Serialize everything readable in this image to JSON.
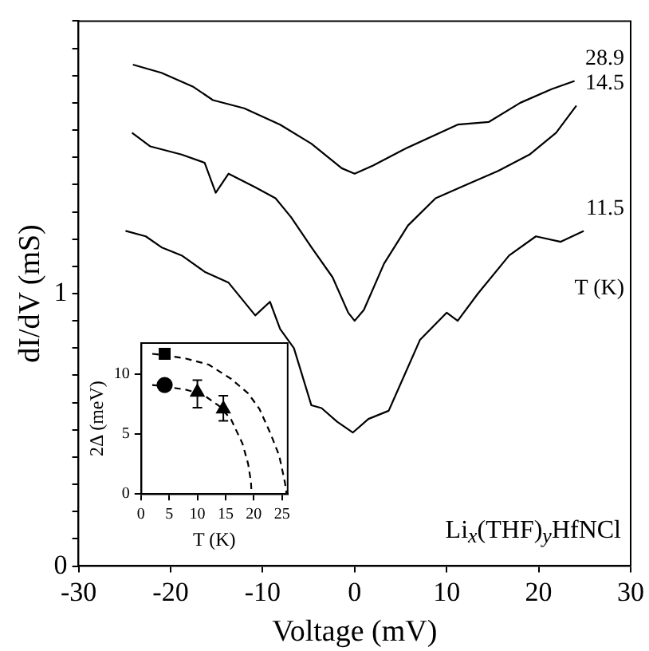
{
  "chart_data": [
    {
      "type": "line",
      "xlabel": "Voltage (mV)",
      "ylabel": "dI/dV (mS)",
      "legend_title": "T (K)",
      "annotations": [
        "Li$_{x}$(THF)$_{y}$HfNCl"
      ],
      "xlim": [
        -30,
        30
      ],
      "xticks": [
        -30,
        -20,
        -10,
        0,
        10,
        20,
        30
      ],
      "ylim": [
        0,
        2
      ],
      "yticks": [
        0,
        {
          "value": 0.1,
          "label": null
        },
        {
          "value": 0.2,
          "label": null
        },
        {
          "value": 0.3,
          "label": null
        },
        {
          "value": 0.4,
          "label": null
        },
        {
          "value": 0.5,
          "label": null
        },
        {
          "value": 0.6,
          "label": null
        },
        {
          "value": 0.7,
          "label": null
        },
        {
          "value": 0.8,
          "label": null
        },
        {
          "value": 0.9,
          "label": null
        },
        1,
        {
          "value": 1.1,
          "label": null
        },
        {
          "value": 1.2,
          "label": null
        },
        {
          "value": 1.3,
          "label": null
        },
        {
          "value": 1.4,
          "label": null
        },
        {
          "value": 1.5,
          "label": null
        },
        {
          "value": 1.6,
          "label": null
        },
        {
          "value": 1.7,
          "label": null
        },
        {
          "value": 1.8,
          "label": null
        },
        {
          "value": 1.9,
          "label": null
        },
        {
          "value": 2,
          "label": null
        }
      ],
      "grid": false,
      "legend": false,
      "series": [
        {
          "name": "28.9",
          "color": "#000000",
          "x": [
            -24.1,
            -21,
            -17.6,
            -15.4,
            -12,
            -8.1,
            -4.7,
            -1.4,
            0,
            2,
            5.4,
            11.2,
            14.6,
            18,
            21.4,
            23.9
          ],
          "values": [
            1.84,
            1.81,
            1.76,
            1.71,
            1.68,
            1.62,
            1.55,
            1.46,
            1.44,
            1.47,
            1.53,
            1.62,
            1.63,
            1.7,
            1.75,
            1.78
          ]
        },
        {
          "name": "14.5",
          "color": "#000000",
          "x": [
            -24.2,
            -22.2,
            -18.8,
            -16.3,
            -15.1,
            -13.7,
            -10.8,
            -8.6,
            -6.9,
            -4.7,
            -2.4,
            -0.7,
            0,
            1,
            3.2,
            5.8,
            8.8,
            12.2,
            15.6,
            19,
            21.9,
            24.1
          ],
          "values": [
            1.59,
            1.54,
            1.51,
            1.48,
            1.37,
            1.44,
            1.39,
            1.35,
            1.28,
            1.17,
            1.06,
            0.93,
            0.9,
            0.94,
            1.11,
            1.25,
            1.35,
            1.4,
            1.45,
            1.51,
            1.59,
            1.69
          ]
        },
        {
          "name": "11.5",
          "color": "#000000",
          "x": [
            -24.9,
            -22.7,
            -21,
            -18.8,
            -16.3,
            -13.7,
            -10.8,
            -9.2,
            -8.1,
            -6.6,
            -4.7,
            -3.6,
            -1.9,
            -0.2,
            1.5,
            3.7,
            5.4,
            7.1,
            10,
            11.2,
            13.4,
            16.8,
            19.7,
            22.4,
            24.9
          ],
          "values": [
            1.23,
            1.21,
            1.17,
            1.14,
            1.08,
            1.04,
            0.92,
            0.97,
            0.87,
            0.8,
            0.59,
            0.58,
            0.53,
            0.49,
            0.54,
            0.57,
            0.7,
            0.83,
            0.93,
            0.9,
            1.0,
            1.14,
            1.21,
            1.19,
            1.23
          ]
        }
      ]
    },
    {
      "type": "scatter",
      "xlabel": "T (K)",
      "ylabel": "2Δ (meV)",
      "xlim": [
        0,
        26
      ],
      "xticks": [
        0,
        5,
        10,
        15,
        20,
        25
      ],
      "ylim": [
        0,
        12.6
      ],
      "yticks": [
        0,
        5,
        10
      ],
      "grid": false,
      "legend": false,
      "series": [
        {
          "type": "scatter",
          "marker": "square",
          "color": "#000000",
          "x": [
            4.2
          ],
          "values": [
            11.7
          ]
        },
        {
          "type": "scatter",
          "marker": "circle",
          "color": "#000000",
          "x": [
            4.2
          ],
          "values": [
            9.1
          ]
        },
        {
          "type": "scatter",
          "marker": "triangle",
          "color": "#000000",
          "x": [
            10,
            14.6
          ],
          "values": [
            8.5,
            7.1
          ],
          "errors": [
            [
              7.2,
              9.5
            ],
            [
              6.1,
              8.2
            ]
          ]
        },
        {
          "type": "line",
          "line_style": "dashed",
          "marker": "none",
          "color": "#000000",
          "x": [
            2,
            4,
            8,
            12,
            16,
            19,
            21,
            23,
            24.5,
            25.5,
            25.8
          ],
          "values": [
            11.7,
            11.6,
            11.3,
            10.8,
            9.6,
            8.4,
            7.1,
            5.0,
            3.2,
            1,
            0
          ]
        },
        {
          "type": "line",
          "line_style": "dashed",
          "marker": "none",
          "color": "#000000",
          "x": [
            2,
            4,
            8,
            11,
            14,
            16,
            18,
            19,
            19.5,
            19.6
          ],
          "values": [
            9.1,
            9.0,
            8.7,
            8.3,
            7.3,
            6.2,
            4.2,
            2.5,
            1,
            0
          ]
        }
      ]
    }
  ]
}
